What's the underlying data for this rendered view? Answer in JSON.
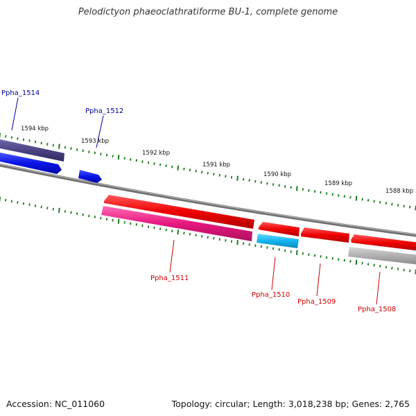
{
  "title": "Pelodictyon phaeoclathratiforme BU-1, complete genome",
  "footer": {
    "accession": "Accession: NC_011060",
    "summary": "Topology: circular; Length: 3,018,238 bp; Genes: 2,765"
  },
  "scale_labels": [
    "1594 kbp",
    "1593 kbp",
    "1592 kbp",
    "1591 kbp",
    "1590 kbp",
    "1589 kbp",
    "1588 kbp"
  ],
  "genes": [
    {
      "label": "Ppha_1514",
      "color": "#000099"
    },
    {
      "label": "Ppha_1512",
      "color": "#000099"
    },
    {
      "label": "Ppha_1511",
      "color": "#cc0000"
    },
    {
      "label": "Ppha_1510",
      "color": "#cc0000"
    },
    {
      "label": "Ppha_1509",
      "color": "#cc0000"
    },
    {
      "label": "Ppha_1508",
      "color": "#cc0000"
    }
  ],
  "colors": {
    "backbone": "#7a7a7a",
    "tick": "#1a7a1a",
    "dark_blue_feature": "#4a4484",
    "blue_feature": "#0a14e6",
    "red_feature": "#ee0000",
    "pink_feature": "#e6177f",
    "cyan_feature": "#12b4f0",
    "gray_feature": "#a8a8a8"
  }
}
